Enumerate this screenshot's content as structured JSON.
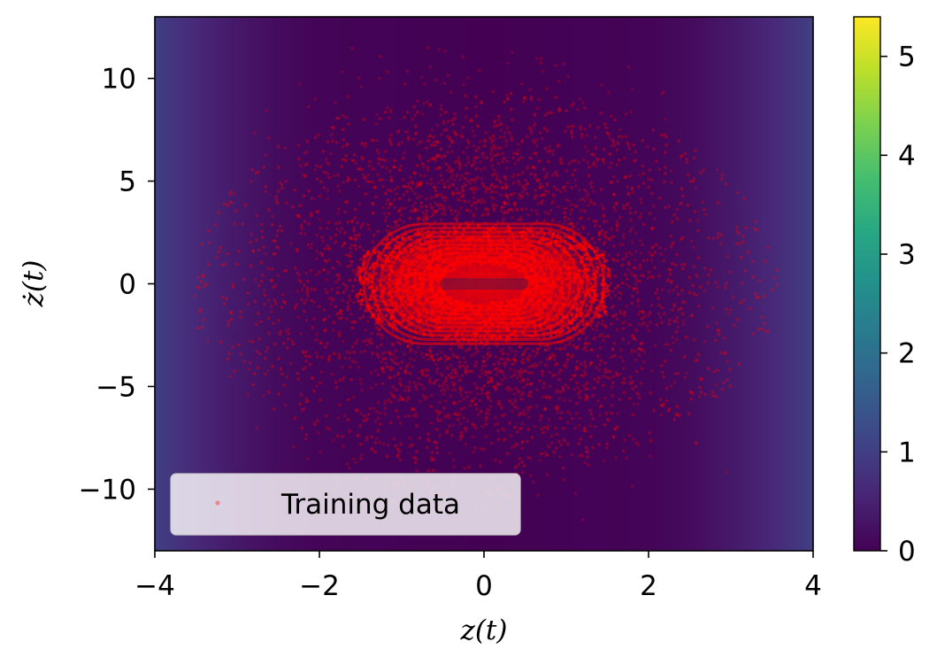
{
  "chart_data": {
    "type": "scatter",
    "background": "heatmap",
    "colormap": "viridis",
    "xlabel": "z(t)",
    "ylabel": "ż(t)",
    "xlim": [
      -4,
      4
    ],
    "ylim": [
      -13,
      13
    ],
    "x_ticks": [
      -4,
      -2,
      0,
      2,
      4
    ],
    "x_tick_labels": [
      "−4",
      "−2",
      "0",
      "2",
      "4"
    ],
    "y_ticks": [
      -10,
      -5,
      0,
      5,
      10
    ],
    "y_tick_labels": [
      "−10",
      "−5",
      "0",
      "5",
      "10"
    ],
    "colorbar": {
      "range": [
        0,
        5.4
      ],
      "ticks": [
        0,
        1,
        2,
        3,
        4,
        5
      ],
      "tick_labels": [
        "0",
        "1",
        "2",
        "3",
        "4",
        "5"
      ]
    },
    "heatmap_profile": {
      "description_axis": "x",
      "x": [
        -4,
        -3.5,
        -3,
        -2.5,
        -2,
        0,
        2,
        2.5,
        3,
        3.5,
        4
      ],
      "value": [
        1.0,
        0.6,
        0.35,
        0.15,
        0.05,
        0.0,
        0.05,
        0.15,
        0.35,
        0.6,
        1.0
      ]
    },
    "series": [
      {
        "name": "Training data",
        "color": "#ff0000",
        "cloud": {
          "x_center": 0,
          "y_center": 0,
          "x_spread": 3.0,
          "y_spread": 11.5
        },
        "core_orbit": {
          "x_center": 0,
          "y_center": 0,
          "half_width": 1.2,
          "half_height": 2.4
        }
      }
    ],
    "legend": {
      "position": "lower-left",
      "entries": [
        "Training data"
      ]
    }
  }
}
